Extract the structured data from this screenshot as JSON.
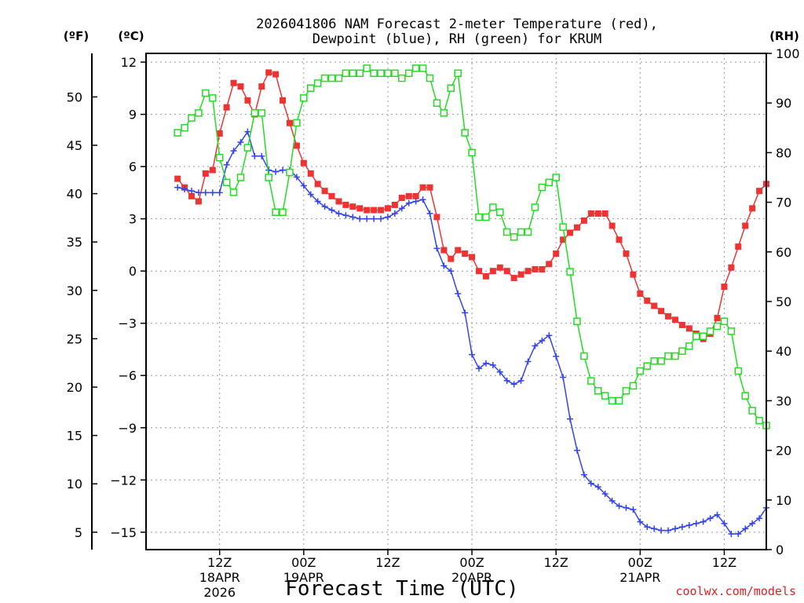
{
  "chart_data": {
    "type": "line",
    "title_line1": "2026041806 NAM Forecast 2-meter Temperature (red),",
    "title_line2": "Dewpoint (blue), RH (green) for KRUM",
    "left_unit_f": "(ºF)",
    "left_unit_c": "(ºC)",
    "right_unit": "(RH)",
    "xlabel": "Forecast Time (UTC)",
    "credit": "coolwx.com/models",
    "x_hours_range": [
      -4.5,
      84
    ],
    "ylim_c": [
      -16,
      12.5
    ],
    "ylim_rh": [
      0,
      100
    ],
    "yticks_c": [
      12,
      9,
      6,
      3,
      0,
      -3,
      -6,
      -9,
      -12,
      -15
    ],
    "yticks_c_labels": [
      "12",
      "9",
      "6",
      "3",
      "0",
      "−3",
      "−6",
      "−9",
      "−12",
      "−15"
    ],
    "yticks_f": [
      50,
      45,
      40,
      35,
      30,
      25,
      20,
      15,
      10,
      5
    ],
    "yticks_rh": [
      100,
      90,
      80,
      70,
      60,
      50,
      40,
      30,
      20,
      10,
      0
    ],
    "xticks": [
      {
        "hours": 6,
        "label": "12Z",
        "date": "18APR",
        "year": "2026"
      },
      {
        "hours": 18,
        "label": "00Z",
        "date": "19APR",
        "year": ""
      },
      {
        "hours": 30,
        "label": "12Z",
        "date": "",
        "year": ""
      },
      {
        "hours": 42,
        "label": "00Z",
        "date": "20APR",
        "year": ""
      },
      {
        "hours": 54,
        "label": "12Z",
        "date": "",
        "year": ""
      },
      {
        "hours": 66,
        "label": "00Z",
        "date": "21APR",
        "year": ""
      },
      {
        "hours": 78,
        "label": "12Z",
        "date": "",
        "year": ""
      }
    ],
    "x_hours": [
      0,
      1,
      2,
      3,
      4,
      5,
      6,
      7,
      8,
      9,
      10,
      11,
      12,
      13,
      14,
      15,
      16,
      17,
      18,
      19,
      20,
      21,
      22,
      23,
      24,
      25,
      26,
      27,
      28,
      29,
      30,
      31,
      32,
      33,
      34,
      35,
      36,
      37,
      38,
      39,
      40,
      41,
      42,
      43,
      44,
      45,
      46,
      47,
      48,
      49,
      50,
      51,
      52,
      53,
      54,
      55,
      56,
      57,
      58,
      59,
      60,
      61,
      62,
      63,
      64,
      65,
      66,
      67,
      68,
      69,
      70,
      71,
      72,
      73,
      74,
      75,
      76,
      77,
      78,
      79,
      80,
      81,
      82,
      83,
      84
    ],
    "series": [
      {
        "name": "Temperature",
        "units": "C",
        "color": "#ee3333",
        "marker": "filled-square",
        "values": [
          5.3,
          4.8,
          4.3,
          4.0,
          5.6,
          5.8,
          7.9,
          9.4,
          10.8,
          10.6,
          9.8,
          9.0,
          10.6,
          11.4,
          11.3,
          9.8,
          8.5,
          7.2,
          6.2,
          5.6,
          5.0,
          4.6,
          4.3,
          4.0,
          3.8,
          3.7,
          3.6,
          3.5,
          3.5,
          3.5,
          3.6,
          3.8,
          4.2,
          4.3,
          4.3,
          4.8,
          4.8,
          3.1,
          1.2,
          0.7,
          1.2,
          1.0,
          0.8,
          0.0,
          -0.3,
          0.0,
          0.2,
          0.0,
          -0.4,
          -0.2,
          0.0,
          0.1,
          0.1,
          0.4,
          1.0,
          1.8,
          2.2,
          2.5,
          2.9,
          3.3,
          3.3,
          3.3,
          2.6,
          1.8,
          1.0,
          -0.2,
          -1.3,
          -1.7,
          -2.0,
          -2.3,
          -2.6,
          -2.8,
          -3.1,
          -3.3,
          -3.6,
          -3.9,
          -3.6,
          -2.7,
          -0.9,
          0.2,
          1.4,
          2.6,
          3.6,
          4.6,
          5.0
        ]
      },
      {
        "name": "Dewpoint",
        "units": "C",
        "color": "#3344ee",
        "marker": "plus",
        "values": [
          4.8,
          4.7,
          4.6,
          4.5,
          4.5,
          4.5,
          4.5,
          6.1,
          6.9,
          7.4,
          8.0,
          6.6,
          6.6,
          5.8,
          5.7,
          5.8,
          5.8,
          5.4,
          4.9,
          4.4,
          4.0,
          3.7,
          3.5,
          3.3,
          3.2,
          3.1,
          3.0,
          3.0,
          3.0,
          3.0,
          3.1,
          3.3,
          3.6,
          3.9,
          4.0,
          4.1,
          3.3,
          1.3,
          0.3,
          0.0,
          -1.3,
          -2.4,
          -4.8,
          -5.6,
          -5.3,
          -5.4,
          -5.8,
          -6.3,
          -6.5,
          -6.3,
          -5.2,
          -4.3,
          -4.0,
          -3.7,
          -4.9,
          -6.1,
          -8.5,
          -10.3,
          -11.7,
          -12.2,
          -12.4,
          -12.8,
          -13.2,
          -13.5,
          -13.6,
          -13.7,
          -14.4,
          -14.7,
          -14.8,
          -14.9,
          -14.9,
          -14.8,
          -14.7,
          -14.6,
          -14.5,
          -14.4,
          -14.2,
          -14.0,
          -14.5,
          -15.1,
          -15.1,
          -14.8,
          -14.5,
          -14.2,
          -13.6
        ]
      },
      {
        "name": "RH",
        "units": "%",
        "color": "#22dd22",
        "marker": "open-square",
        "values": [
          84,
          85,
          87,
          88,
          92,
          91,
          79,
          74,
          72,
          75,
          81,
          88,
          88,
          75,
          68,
          68,
          76,
          86,
          91,
          93,
          94,
          95,
          95,
          95,
          96,
          96,
          96,
          97,
          96,
          96,
          96,
          96,
          95,
          96,
          97,
          97,
          95,
          90,
          88,
          93,
          96,
          84,
          80,
          67,
          67,
          69,
          68,
          64,
          63,
          64,
          64,
          69,
          73,
          74,
          75,
          65,
          56,
          46,
          39,
          34,
          32,
          31,
          30,
          30,
          32,
          33,
          36,
          37,
          38,
          38,
          39,
          39,
          40,
          41,
          43,
          43,
          44,
          45,
          46,
          44,
          36,
          31,
          28,
          26,
          25
        ]
      }
    ]
  }
}
